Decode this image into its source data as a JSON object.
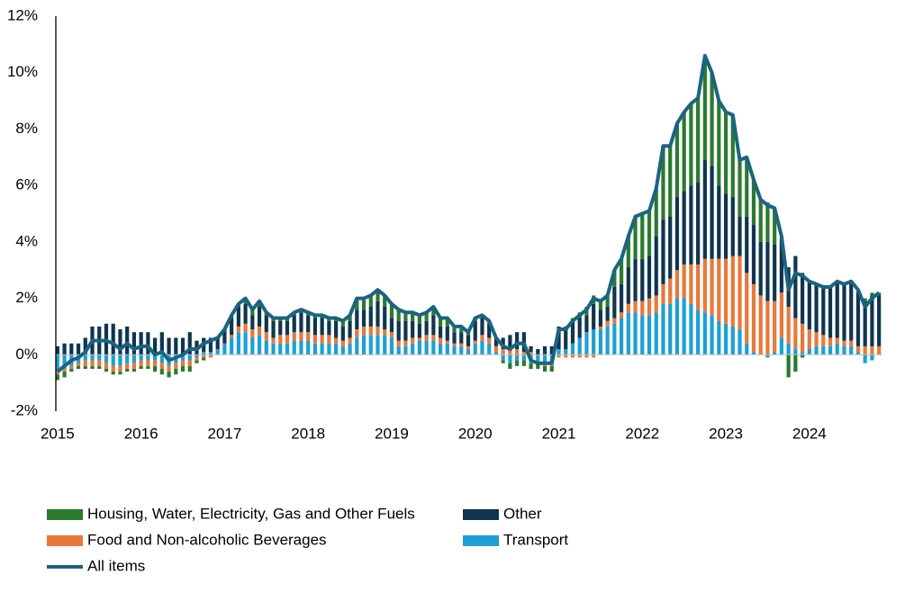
{
  "chart_data": {
    "type": "bar",
    "categories": [
      "2015",
      null,
      null,
      null,
      null,
      null,
      null,
      null,
      null,
      null,
      null,
      null,
      "2016",
      null,
      null,
      null,
      null,
      null,
      null,
      null,
      null,
      null,
      null,
      null,
      "2017",
      null,
      null,
      null,
      null,
      null,
      null,
      null,
      null,
      null,
      null,
      null,
      "2018",
      null,
      null,
      null,
      null,
      null,
      null,
      null,
      null,
      null,
      null,
      null,
      "2019",
      null,
      null,
      null,
      null,
      null,
      null,
      null,
      null,
      null,
      null,
      null,
      "2020",
      null,
      null,
      null,
      null,
      null,
      null,
      null,
      null,
      null,
      null,
      null,
      "2021",
      null,
      null,
      null,
      null,
      null,
      null,
      null,
      null,
      null,
      null,
      null,
      "2022",
      null,
      null,
      null,
      null,
      null,
      null,
      null,
      null,
      null,
      null,
      null,
      "2023",
      null,
      null,
      null,
      null,
      null,
      null,
      null,
      null,
      null,
      null,
      null,
      "2024",
      null,
      null,
      null,
      null,
      null,
      null,
      null,
      null,
      null,
      null
    ],
    "series": [
      {
        "name": "Housing, Water, Electricity, Gas and Other Fuels",
        "color": "#2a7a2e",
        "values": [
          -0.2,
          -0.2,
          -0.1,
          -0.1,
          -0.1,
          -0.1,
          -0.1,
          -0.1,
          -0.1,
          -0.1,
          -0.1,
          -0.1,
          -0.1,
          -0.1,
          -0.2,
          -0.2,
          -0.2,
          -0.2,
          -0.2,
          -0.2,
          -0.1,
          -0.1,
          0.0,
          0.0,
          0.0,
          0.1,
          0.1,
          0.2,
          0.2,
          0.2,
          0.1,
          0.1,
          0.1,
          0.1,
          0.1,
          0.1,
          0.1,
          0.1,
          0.1,
          0.1,
          0.1,
          0.2,
          0.2,
          0.4,
          0.4,
          0.4,
          0.4,
          0.4,
          0.5,
          0.4,
          0.3,
          0.3,
          0.3,
          0.3,
          0.3,
          0.3,
          0.3,
          0.2,
          0.2,
          0.1,
          0.1,
          0.1,
          0.1,
          0.0,
          -0.1,
          -0.2,
          -0.2,
          -0.2,
          -0.2,
          -0.2,
          -0.2,
          -0.2,
          0.0,
          0.0,
          0.1,
          0.2,
          0.3,
          0.3,
          0.3,
          0.4,
          0.6,
          0.9,
          1.1,
          1.5,
          1.6,
          1.6,
          1.7,
          2.6,
          2.5,
          2.6,
          2.8,
          2.9,
          3.0,
          3.7,
          3.3,
          3.0,
          2.9,
          2.9,
          2.0,
          2.1,
          1.6,
          1.5,
          1.4,
          1.3,
          0.1,
          -0.8,
          -0.6,
          -0.1,
          0.0,
          0.0,
          0.0,
          0.0,
          0.0,
          0.0,
          0.0,
          0.1,
          0.1,
          0.1,
          0.1
        ]
      },
      {
        "name": "Other",
        "color": "#0f3550",
        "values": [
          0.3,
          0.4,
          0.4,
          0.4,
          0.6,
          1.0,
          1.0,
          1.1,
          1.1,
          0.9,
          1.0,
          0.8,
          0.8,
          0.8,
          0.6,
          0.8,
          0.6,
          0.6,
          0.6,
          0.8,
          0.5,
          0.5,
          0.5,
          0.4,
          0.5,
          0.6,
          0.7,
          0.7,
          0.5,
          0.7,
          0.6,
          0.6,
          0.5,
          0.5,
          0.6,
          0.7,
          0.6,
          0.6,
          0.6,
          0.5,
          0.6,
          0.5,
          0.6,
          0.7,
          0.6,
          0.7,
          0.9,
          0.8,
          0.5,
          0.7,
          0.7,
          0.6,
          0.5,
          0.5,
          0.7,
          0.4,
          0.5,
          0.4,
          0.4,
          0.4,
          0.7,
          0.6,
          0.5,
          0.3,
          0.4,
          0.5,
          0.6,
          0.7,
          0.2,
          0.2,
          0.3,
          0.3,
          0.8,
          0.8,
          0.8,
          0.7,
          0.6,
          0.9,
          0.6,
          0.5,
          1.1,
          1.0,
          1.3,
          1.5,
          1.5,
          1.5,
          2.1,
          2.3,
          2.2,
          2.6,
          2.6,
          2.8,
          2.9,
          3.5,
          3.3,
          2.6,
          2.3,
          2.1,
          1.4,
          2.0,
          2.1,
          1.9,
          2.1,
          2.0,
          1.9,
          1.4,
          2.2,
          1.8,
          1.7,
          1.7,
          1.7,
          1.8,
          2.0,
          2.0,
          2.1,
          1.9,
          1.6,
          1.8,
          1.8
        ]
      },
      {
        "name": "Food and Non-alcoholic Beverages",
        "color": "#e8783a",
        "values": [
          -0.1,
          -0.1,
          -0.1,
          -0.1,
          -0.2,
          -0.2,
          -0.2,
          -0.2,
          -0.2,
          -0.2,
          -0.2,
          -0.2,
          -0.2,
          -0.2,
          -0.2,
          -0.2,
          -0.2,
          -0.2,
          -0.2,
          -0.2,
          -0.1,
          -0.1,
          -0.1,
          0.0,
          0.0,
          0.1,
          0.2,
          0.3,
          0.3,
          0.3,
          0.3,
          0.2,
          0.3,
          0.3,
          0.3,
          0.3,
          0.3,
          0.3,
          0.3,
          0.3,
          0.2,
          0.2,
          0.2,
          0.3,
          0.3,
          0.3,
          0.3,
          0.2,
          0.2,
          0.2,
          0.2,
          0.2,
          0.1,
          0.2,
          0.2,
          0.2,
          0.1,
          0.1,
          0.1,
          0.1,
          0.1,
          0.2,
          0.2,
          0.2,
          0.2,
          0.2,
          0.2,
          0.1,
          0.1,
          0.0,
          -0.1,
          -0.1,
          -0.1,
          -0.1,
          -0.1,
          -0.1,
          -0.1,
          -0.1,
          0.1,
          0.2,
          0.2,
          0.2,
          0.3,
          0.4,
          0.5,
          0.6,
          0.6,
          0.7,
          0.9,
          1.0,
          1.2,
          1.4,
          1.6,
          1.9,
          2.0,
          2.2,
          2.3,
          2.5,
          2.6,
          2.5,
          2.4,
          2.1,
          1.9,
          1.8,
          1.6,
          1.3,
          1.1,
          1.0,
          0.7,
          0.5,
          0.4,
          0.3,
          0.2,
          0.2,
          0.2,
          0.2,
          0.3,
          0.3,
          0.3
        ]
      },
      {
        "name": "Transport",
        "color": "#1e9fd4",
        "values": [
          -0.6,
          -0.5,
          -0.4,
          -0.3,
          -0.2,
          -0.2,
          -0.2,
          -0.3,
          -0.4,
          -0.4,
          -0.3,
          -0.3,
          -0.2,
          -0.2,
          -0.2,
          -0.3,
          -0.4,
          -0.3,
          -0.2,
          -0.2,
          -0.1,
          0.1,
          0.1,
          0.2,
          0.4,
          0.6,
          0.8,
          0.8,
          0.6,
          0.7,
          0.5,
          0.4,
          0.4,
          0.4,
          0.5,
          0.5,
          0.5,
          0.4,
          0.4,
          0.4,
          0.4,
          0.3,
          0.4,
          0.6,
          0.7,
          0.7,
          0.7,
          0.7,
          0.6,
          0.3,
          0.3,
          0.4,
          0.5,
          0.5,
          0.5,
          0.4,
          0.4,
          0.3,
          0.3,
          0.2,
          0.4,
          0.5,
          0.4,
          0.1,
          -0.2,
          -0.3,
          -0.2,
          -0.2,
          -0.3,
          -0.3,
          -0.3,
          -0.3,
          0.2,
          0.2,
          0.4,
          0.6,
          0.8,
          0.9,
          0.9,
          1.0,
          1.1,
          1.3,
          1.5,
          1.5,
          1.4,
          1.4,
          1.5,
          1.8,
          1.8,
          2.0,
          2.0,
          1.8,
          1.6,
          1.5,
          1.4,
          1.2,
          1.1,
          1.0,
          0.9,
          0.4,
          0.1,
          0.0,
          -0.1,
          0.1,
          0.6,
          0.4,
          0.2,
          0.1,
          0.2,
          0.3,
          0.3,
          0.3,
          0.4,
          0.3,
          0.3,
          0.1,
          -0.3,
          -0.2,
          0.0
        ]
      },
      {
        "name": "All items",
        "type": "line",
        "color": "#1b6480",
        "values": [
          -0.6,
          -0.4,
          -0.2,
          -0.1,
          0.1,
          0.5,
          0.5,
          0.5,
          0.4,
          0.2,
          0.4,
          0.2,
          0.3,
          0.3,
          0.0,
          0.1,
          -0.2,
          -0.1,
          0.0,
          0.2,
          0.2,
          0.4,
          0.5,
          0.6,
          0.9,
          1.4,
          1.8,
          2.0,
          1.6,
          1.9,
          1.5,
          1.3,
          1.3,
          1.3,
          1.5,
          1.6,
          1.5,
          1.4,
          1.4,
          1.3,
          1.3,
          1.2,
          1.4,
          2.0,
          2.0,
          2.1,
          2.3,
          2.1,
          1.8,
          1.6,
          1.5,
          1.5,
          1.4,
          1.5,
          1.7,
          1.3,
          1.3,
          1.0,
          1.0,
          0.8,
          1.3,
          1.4,
          1.2,
          0.6,
          0.3,
          0.2,
          0.4,
          0.4,
          -0.2,
          -0.3,
          -0.3,
          -0.3,
          0.9,
          0.9,
          1.2,
          1.4,
          1.6,
          2.0,
          1.9,
          2.1,
          3.0,
          3.4,
          4.2,
          4.9,
          5.0,
          5.1,
          5.9,
          7.4,
          7.4,
          8.2,
          8.6,
          8.9,
          9.1,
          10.6,
          10.0,
          9.0,
          8.6,
          8.5,
          6.9,
          7.0,
          6.2,
          5.5,
          5.3,
          5.2,
          4.2,
          2.3,
          2.9,
          2.8,
          2.6,
          2.5,
          2.4,
          2.4,
          2.6,
          2.5,
          2.6,
          2.3,
          1.7,
          2.0,
          2.2
        ]
      }
    ],
    "ylim": [
      -2,
      12
    ],
    "yticks": [
      {
        "value": -2,
        "label": "-2%"
      },
      {
        "value": 0,
        "label": "0%"
      },
      {
        "value": 2,
        "label": "2%"
      },
      {
        "value": 4,
        "label": "4%"
      },
      {
        "value": 6,
        "label": "6%"
      },
      {
        "value": 8,
        "label": "8%"
      },
      {
        "value": 10,
        "label": "10%"
      },
      {
        "value": 12,
        "label": "12%"
      }
    ]
  }
}
